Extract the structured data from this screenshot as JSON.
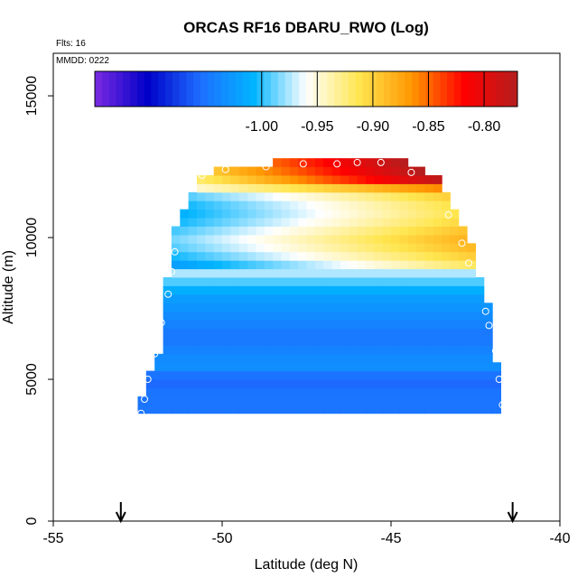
{
  "chart_data": {
    "type": "heatmap",
    "title": "ORCAS RF16 DBARU_RWO (Log)",
    "annotations": [
      "Flts: 16",
      "MMDD: 0222"
    ],
    "xlabel": "Latitude (deg N)",
    "ylabel": "Altitude (m)",
    "xlim": [
      -55,
      -40
    ],
    "ylim": [
      0,
      16500
    ],
    "x_ticks": [
      -55,
      -50,
      -45,
      -40
    ],
    "y_ticks": [
      0,
      5000,
      10000,
      15000
    ],
    "colorbar": {
      "range": [
        -1.15,
        -0.77
      ],
      "ticks": [
        -1.0,
        -0.95,
        -0.9,
        -0.85,
        -0.8
      ],
      "tick_labels": [
        "-1.00",
        "-0.95",
        "-0.90",
        "-0.85",
        "-0.80"
      ],
      "colors": [
        "#7b2be2",
        "#0000c8",
        "#1e6eff",
        "#00b4ff",
        "#ffffff",
        "#ffe650",
        "#ff9600",
        "#ff0000",
        "#b41e1e"
      ]
    },
    "profile_outline": [
      {
        "alt": 3800,
        "lat_min": -52.4,
        "lat_max": -41.8
      },
      {
        "alt": 4400,
        "lat_min": -52.4,
        "lat_max": -41.8
      },
      {
        "alt": 5000,
        "lat_min": -52.2,
        "lat_max": -41.8
      },
      {
        "alt": 5800,
        "lat_min": -51.9,
        "lat_max": -41.9
      },
      {
        "alt": 7200,
        "lat_min": -51.7,
        "lat_max": -42.0
      },
      {
        "alt": 8200,
        "lat_min": -51.7,
        "lat_max": -42.2
      },
      {
        "alt": 8800,
        "lat_min": -51.6,
        "lat_max": -42.6
      },
      {
        "alt": 9700,
        "lat_min": -51.6,
        "lat_max": -42.6
      },
      {
        "alt": 10800,
        "lat_min": -51.2,
        "lat_max": -43.0
      },
      {
        "alt": 11300,
        "lat_min": -51.0,
        "lat_max": -43.3
      },
      {
        "alt": 11800,
        "lat_min": -50.8,
        "lat_max": -43.4
      },
      {
        "alt": 12200,
        "lat_min": -50.8,
        "lat_max": -43.7
      },
      {
        "alt": 12500,
        "lat_min": -49.5,
        "lat_max": -44.2
      },
      {
        "alt": 12800,
        "lat_min": -47.5,
        "lat_max": -44.9
      }
    ],
    "layer_values": [
      {
        "alt": 4000,
        "value": -1.05
      },
      {
        "alt": 4500,
        "value": -1.05
      },
      {
        "alt": 5000,
        "value": -1.06
      },
      {
        "alt": 5500,
        "value": -1.03
      },
      {
        "alt": 6000,
        "value": -1.04
      },
      {
        "alt": 6500,
        "value": -1.05
      },
      {
        "alt": 7000,
        "value": -1.04
      },
      {
        "alt": 7500,
        "value": -1.03
      },
      {
        "alt": 8000,
        "value": -1.02
      },
      {
        "alt": 8500,
        "value": -0.99
      },
      {
        "alt": 9000,
        "value": -0.96
      },
      {
        "alt": 9500,
        "value": -0.93
      },
      {
        "alt": 10000,
        "value": -0.92
      },
      {
        "alt": 10500,
        "value": -0.94
      },
      {
        "alt": 11000,
        "value": -0.95
      },
      {
        "alt": 11500,
        "value": -0.93
      },
      {
        "alt": 12000,
        "value": -0.85
      },
      {
        "alt": 12500,
        "value": -0.82
      }
    ],
    "flight_track": [
      {
        "lat": -52.4,
        "alt": 3800
      },
      {
        "lat": -52.3,
        "alt": 4300
      },
      {
        "lat": -52.2,
        "alt": 5000
      },
      {
        "lat": -52.0,
        "alt": 5900
      },
      {
        "lat": -51.9,
        "alt": 6400
      },
      {
        "lat": -51.8,
        "alt": 7000
      },
      {
        "lat": -51.6,
        "alt": 8000
      },
      {
        "lat": -51.5,
        "alt": 8800
      },
      {
        "lat": -51.4,
        "alt": 9500
      },
      {
        "lat": -50.6,
        "alt": 12200
      },
      {
        "lat": -49.9,
        "alt": 12400
      },
      {
        "lat": -48.7,
        "alt": 12500
      },
      {
        "lat": -47.6,
        "alt": 12600
      },
      {
        "lat": -46.6,
        "alt": 12600
      },
      {
        "lat": -46.0,
        "alt": 12650
      },
      {
        "lat": -45.3,
        "alt": 12650
      },
      {
        "lat": -44.4,
        "alt": 12300
      },
      {
        "lat": -43.3,
        "alt": 10800
      },
      {
        "lat": -42.9,
        "alt": 9800
      },
      {
        "lat": -42.7,
        "alt": 9100
      },
      {
        "lat": -42.2,
        "alt": 7400
      },
      {
        "lat": -42.1,
        "alt": 6900
      },
      {
        "lat": -41.9,
        "alt": 6000
      },
      {
        "lat": -41.8,
        "alt": 5000
      },
      {
        "lat": -41.7,
        "alt": 4100
      }
    ],
    "markers": [
      {
        "lat": -53.0
      },
      {
        "lat": -41.4
      }
    ],
    "grid": false,
    "legend": "colorbar top"
  }
}
